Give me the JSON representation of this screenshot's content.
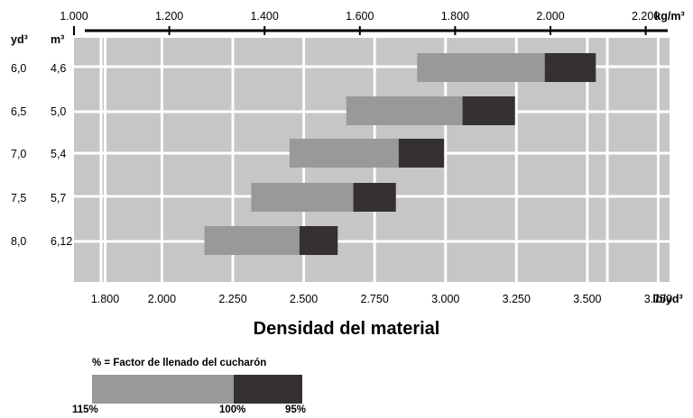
{
  "chart_data": {
    "type": "bar",
    "title": "Densidad del material",
    "top_axis": {
      "unit": "kg/m³",
      "range": [
        1000,
        2250
      ],
      "ticks": [
        "1.000",
        "1.200",
        "1.400",
        "1.600",
        "1.800",
        "2.000",
        "2.200"
      ]
    },
    "bottom_axis": {
      "unit": "lb/yd³",
      "range": [
        1690,
        3790
      ],
      "ticks": [
        "1.800",
        "2.000",
        "2.250",
        "2.500",
        "2.750",
        "3.000",
        "3.250",
        "3.500",
        "3.750"
      ]
    },
    "row_headers": {
      "yd3": "yd³",
      "m3": "m³"
    },
    "rows": [
      {
        "yd3": "6,0",
        "m3": "4,6",
        "start": 2900,
        "mid": 3350,
        "end": 3530
      },
      {
        "yd3": "6,5",
        "m3": "5,0",
        "start": 2650,
        "mid": 3060,
        "end": 3245
      },
      {
        "yd3": "7,0",
        "m3": "5,4",
        "start": 2450,
        "mid": 2835,
        "end": 2995
      },
      {
        "yd3": "7,5",
        "m3": "5,7",
        "start": 2315,
        "mid": 2675,
        "end": 2825
      },
      {
        "yd3": "8,0",
        "m3": "6,12",
        "start": 2150,
        "mid": 2485,
        "end": 2620
      }
    ],
    "series": [
      {
        "name": "115%–100%",
        "color": "#999999"
      },
      {
        "name": "100%–95%",
        "color": "#353130"
      }
    ],
    "grid": true
  },
  "legend": {
    "title": "% = Factor de llenado del cucharón",
    "labels": [
      "115%",
      "100%",
      "95%"
    ]
  },
  "colors": {
    "background_cells": "#c6c6c6",
    "grid_lines": "#ffffff",
    "bar_light": "#999999",
    "bar_dark": "#353130"
  }
}
